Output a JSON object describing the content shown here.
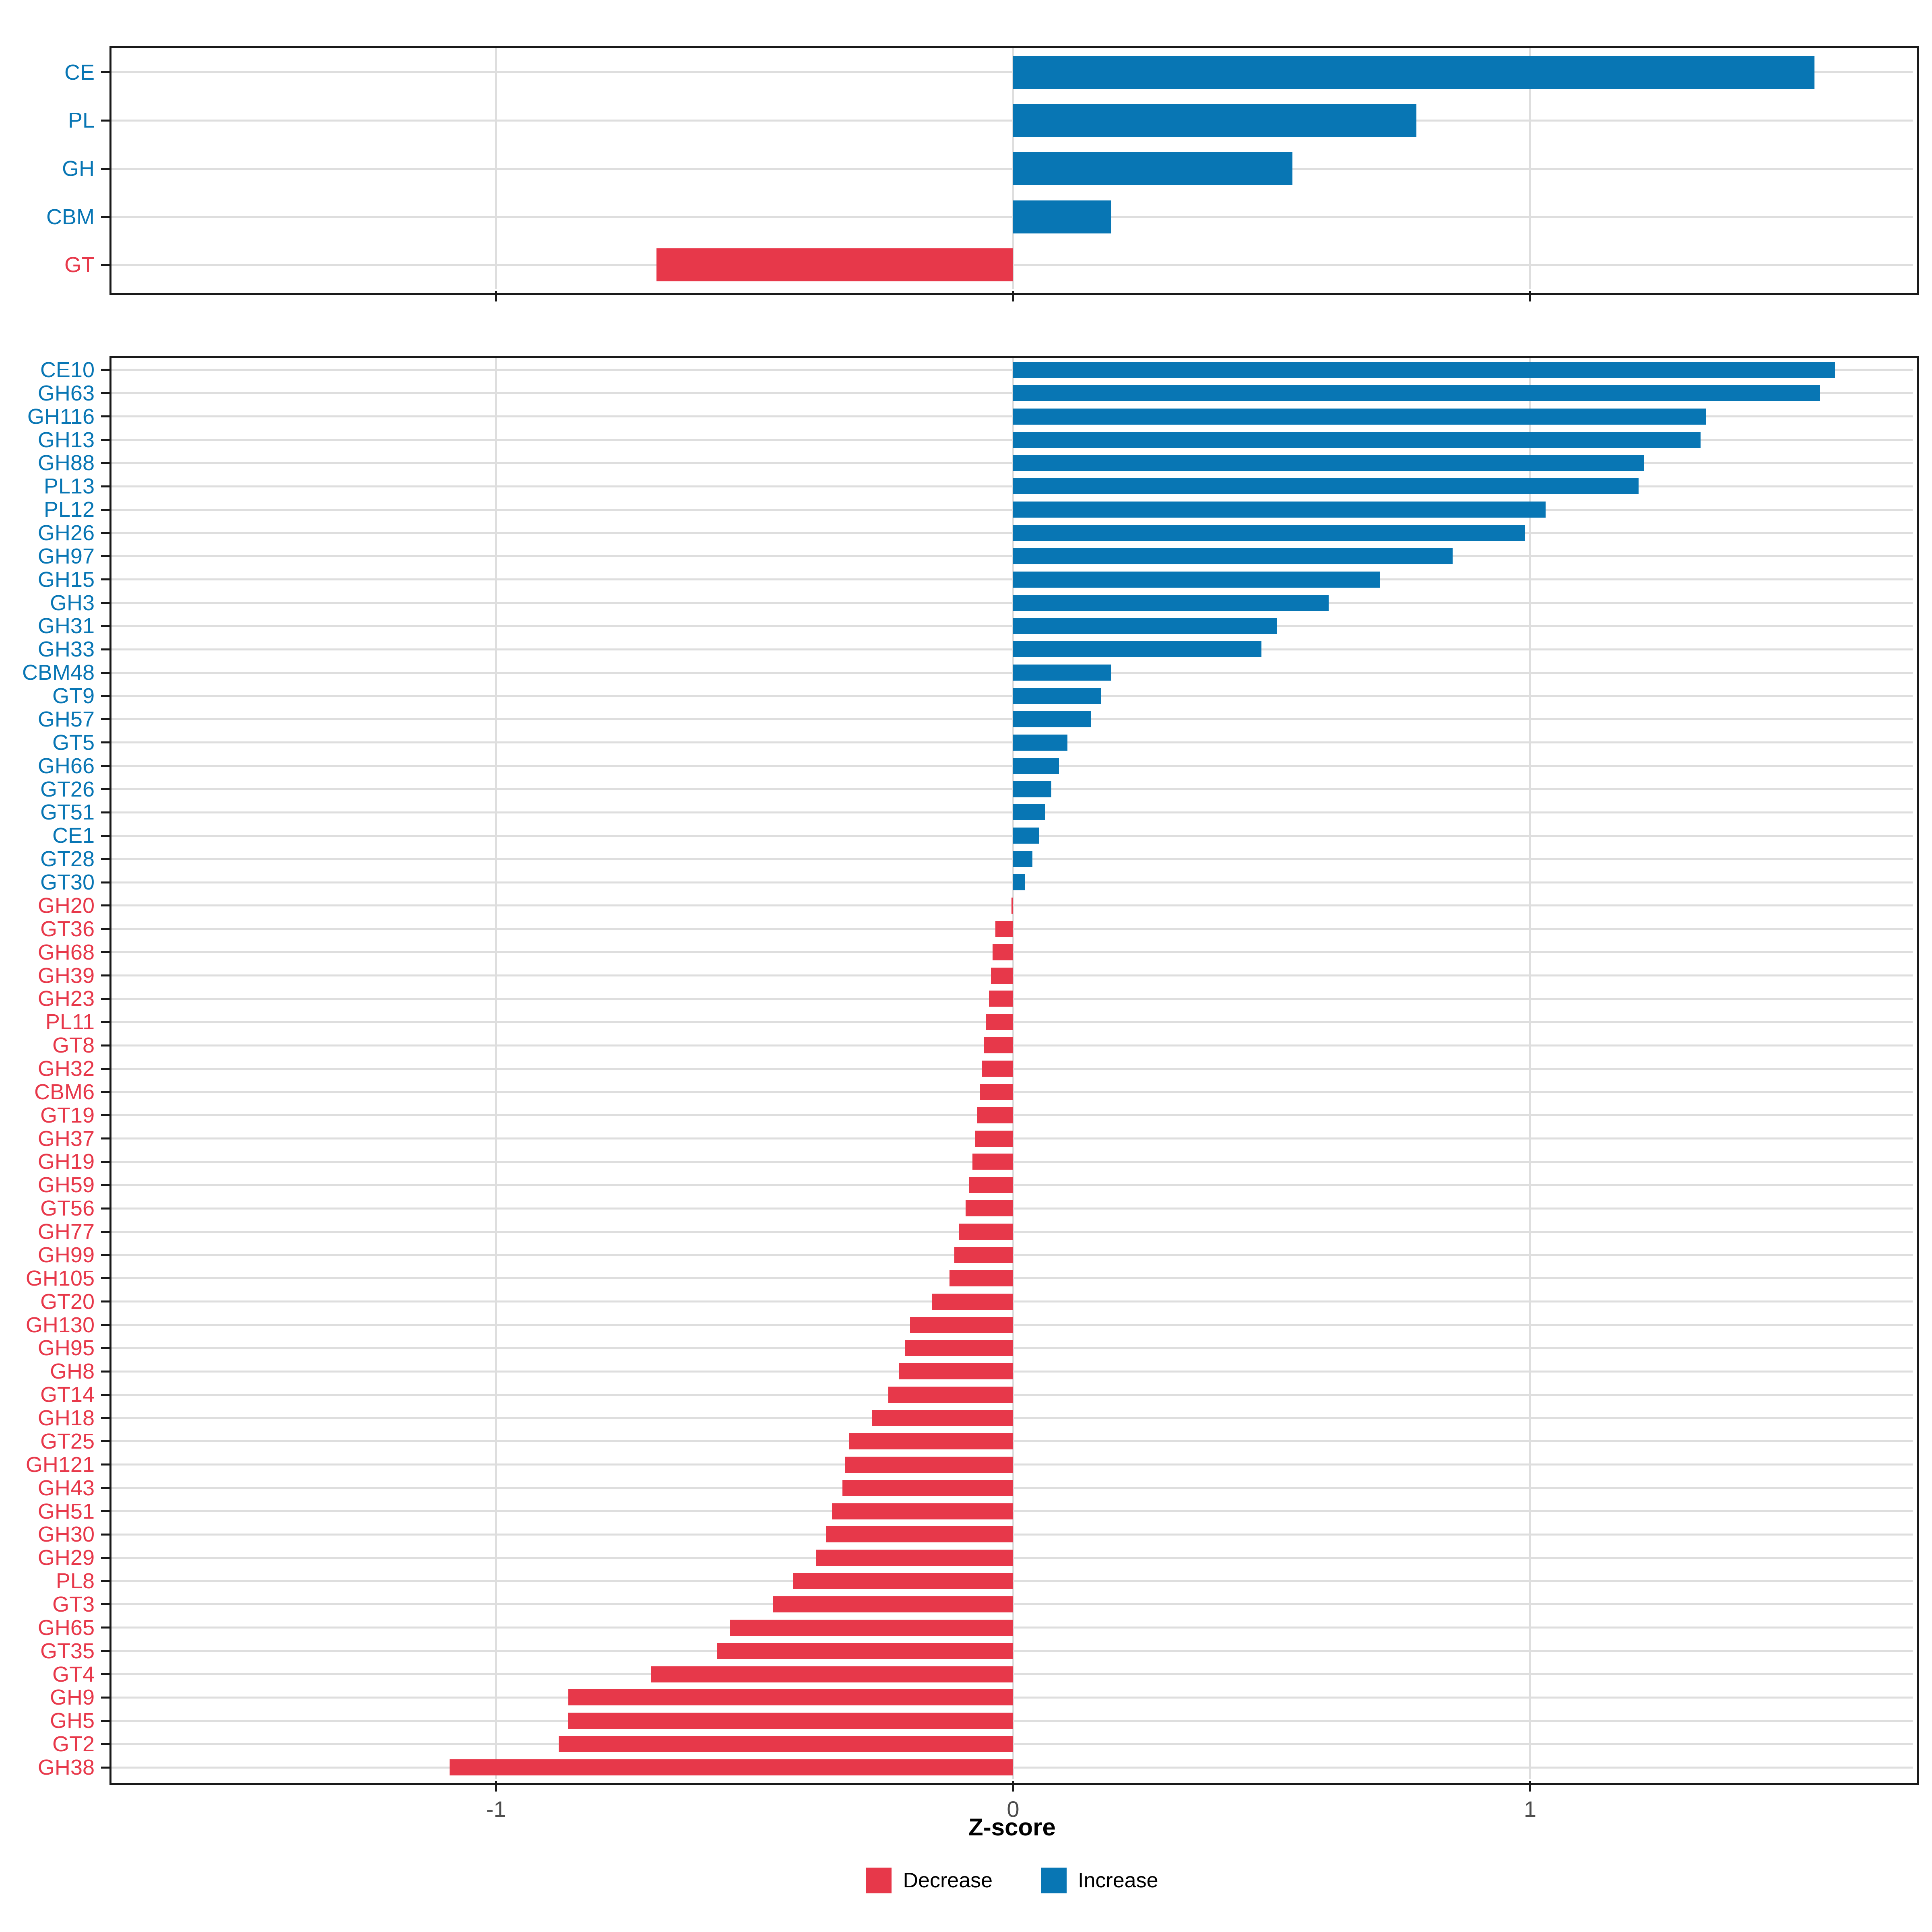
{
  "colors": {
    "increase": "#0876B4",
    "decrease": "#E7384A",
    "gridline": "#dedede",
    "panel_border": "#1a1a1a",
    "tick_label": "#4d4d4d",
    "background": "#ffffff"
  },
  "axis": {
    "title": "Z-score",
    "ticks": [
      "-1",
      "0",
      "1"
    ],
    "tick_values": [
      -1,
      0,
      1
    ]
  },
  "legend": {
    "items": [
      {
        "label": "Decrease",
        "color": "#E7384A"
      },
      {
        "label": "Increase",
        "color": "#0876B4"
      }
    ]
  },
  "chart_data": [
    {
      "type": "bar",
      "orientation": "horizontal",
      "panel": "top",
      "title": "",
      "xlabel": "Z-score",
      "ylabel": "",
      "xlim": [
        -1.745,
        1.74
      ],
      "xticks": [
        -1,
        0,
        1
      ],
      "grid": "major-only",
      "legend_position": "bottom",
      "categories": [
        "CE",
        "PL",
        "GH",
        "CBM",
        "GT"
      ],
      "values": [
        1.55,
        0.78,
        0.54,
        0.19,
        -0.69
      ],
      "directions": [
        "Increase",
        "Increase",
        "Increase",
        "Increase",
        "Decrease"
      ]
    },
    {
      "type": "bar",
      "orientation": "horizontal",
      "panel": "bottom",
      "title": "",
      "xlabel": "Z-score",
      "ylabel": "",
      "xlim": [
        -1.745,
        1.74
      ],
      "xticks": [
        -1,
        0,
        1
      ],
      "grid": "major-only",
      "legend_position": "bottom",
      "categories": [
        "CE10",
        "GH63",
        "GH116",
        "GH13",
        "GH88",
        "PL13",
        "PL12",
        "GH26",
        "GH97",
        "GH15",
        "GH3",
        "GH31",
        "GH33",
        "CBM48",
        "GT9",
        "GH57",
        "GT5",
        "GH66",
        "GT26",
        "GT51",
        "CE1",
        "GT28",
        "GT30",
        "GH20",
        "GT36",
        "GH68",
        "GH39",
        "GH23",
        "PL11",
        "GT8",
        "GH32",
        "CBM6",
        "GT19",
        "GH37",
        "GH19",
        "GH59",
        "GT56",
        "GH77",
        "GH99",
        "GH105",
        "GT20",
        "GH130",
        "GH95",
        "GH8",
        "GT14",
        "GH18",
        "GT25",
        "GH121",
        "GH43",
        "GH51",
        "GH30",
        "GH29",
        "PL8",
        "GT3",
        "GH65",
        "GT35",
        "GT4",
        "GH9",
        "GH5",
        "GT2",
        "GH38"
      ],
      "values": [
        1.59,
        1.56,
        1.34,
        1.33,
        1.22,
        1.21,
        1.03,
        0.99,
        0.85,
        0.71,
        0.61,
        0.51,
        0.48,
        0.19,
        0.17,
        0.15,
        0.105,
        0.089,
        0.074,
        0.062,
        0.05,
        0.037,
        0.023,
        -0.003,
        -0.034,
        -0.04,
        -0.043,
        -0.047,
        -0.052,
        -0.056,
        -0.06,
        -0.064,
        -0.069,
        -0.074,
        -0.079,
        -0.085,
        -0.092,
        -0.104,
        -0.114,
        -0.123,
        -0.157,
        -0.199,
        -0.209,
        -0.22,
        -0.241,
        -0.273,
        -0.318,
        -0.325,
        -0.33,
        -0.35,
        -0.362,
        -0.381,
        -0.426,
        -0.465,
        -0.548,
        -0.573,
        -0.701,
        -0.86,
        -0.861,
        -0.879,
        -1.09
      ],
      "directions": [
        "Increase",
        "Increase",
        "Increase",
        "Increase",
        "Increase",
        "Increase",
        "Increase",
        "Increase",
        "Increase",
        "Increase",
        "Increase",
        "Increase",
        "Increase",
        "Increase",
        "Increase",
        "Increase",
        "Increase",
        "Increase",
        "Increase",
        "Increase",
        "Increase",
        "Increase",
        "Increase",
        "Decrease",
        "Decrease",
        "Decrease",
        "Decrease",
        "Decrease",
        "Decrease",
        "Decrease",
        "Decrease",
        "Decrease",
        "Decrease",
        "Decrease",
        "Decrease",
        "Decrease",
        "Decrease",
        "Decrease",
        "Decrease",
        "Decrease",
        "Decrease",
        "Decrease",
        "Decrease",
        "Decrease",
        "Decrease",
        "Decrease",
        "Decrease",
        "Decrease",
        "Decrease",
        "Decrease",
        "Decrease",
        "Decrease",
        "Decrease",
        "Decrease",
        "Decrease",
        "Decrease",
        "Decrease",
        "Decrease",
        "Decrease",
        "Decrease",
        "Decrease"
      ]
    }
  ]
}
